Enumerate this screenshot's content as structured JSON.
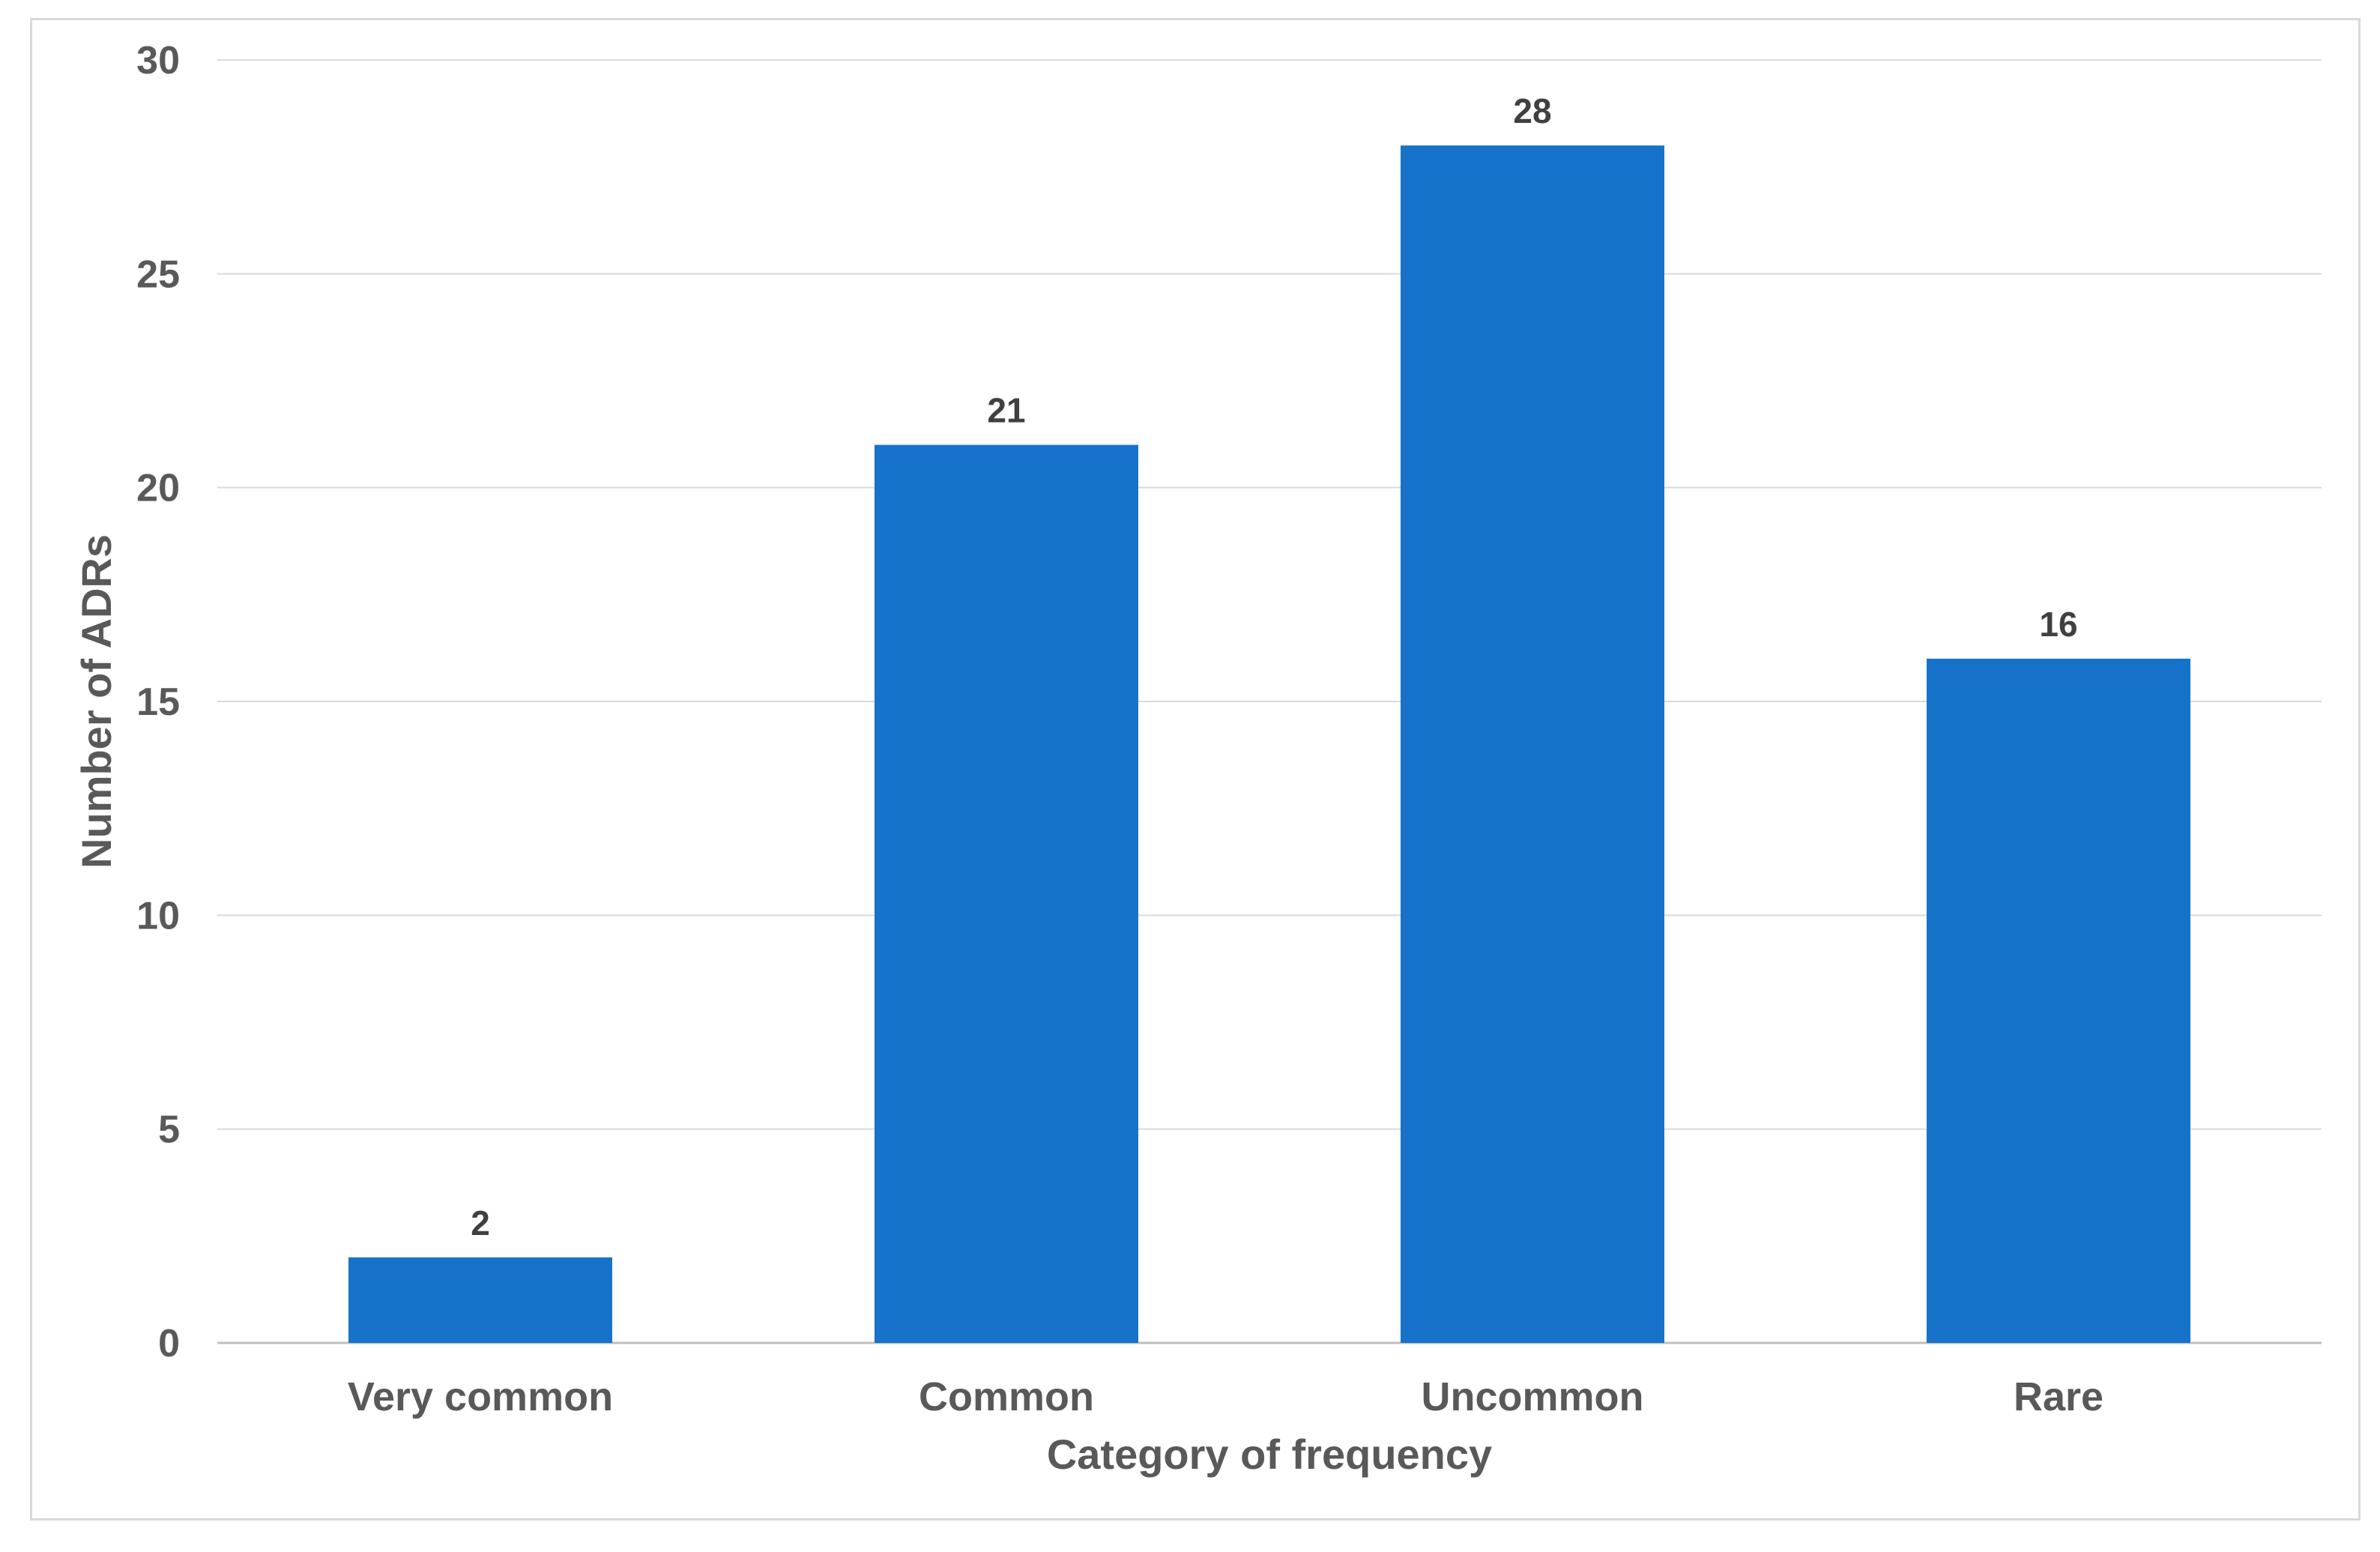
{
  "chart_data": {
    "type": "bar",
    "categories": [
      "Very common",
      "Common",
      "Uncommon",
      "Rare"
    ],
    "values": [
      2,
      21,
      28,
      16
    ],
    "data_labels": [
      "2",
      "21",
      "28",
      "16"
    ],
    "title": "",
    "xlabel": "Category of frequency",
    "ylabel": "Number of ADRs",
    "ylim": [
      0,
      30
    ],
    "yticks": [
      0,
      5,
      10,
      15,
      20,
      25,
      30
    ],
    "ytick_labels": [
      "0",
      "5",
      "10",
      "15",
      "20",
      "25",
      "30"
    ],
    "grid": true,
    "legend": "none",
    "colors": {
      "bar": "#1773CA",
      "grid": "#D9D9D9",
      "axis_text": "#595959",
      "data_label": "#404040"
    }
  }
}
